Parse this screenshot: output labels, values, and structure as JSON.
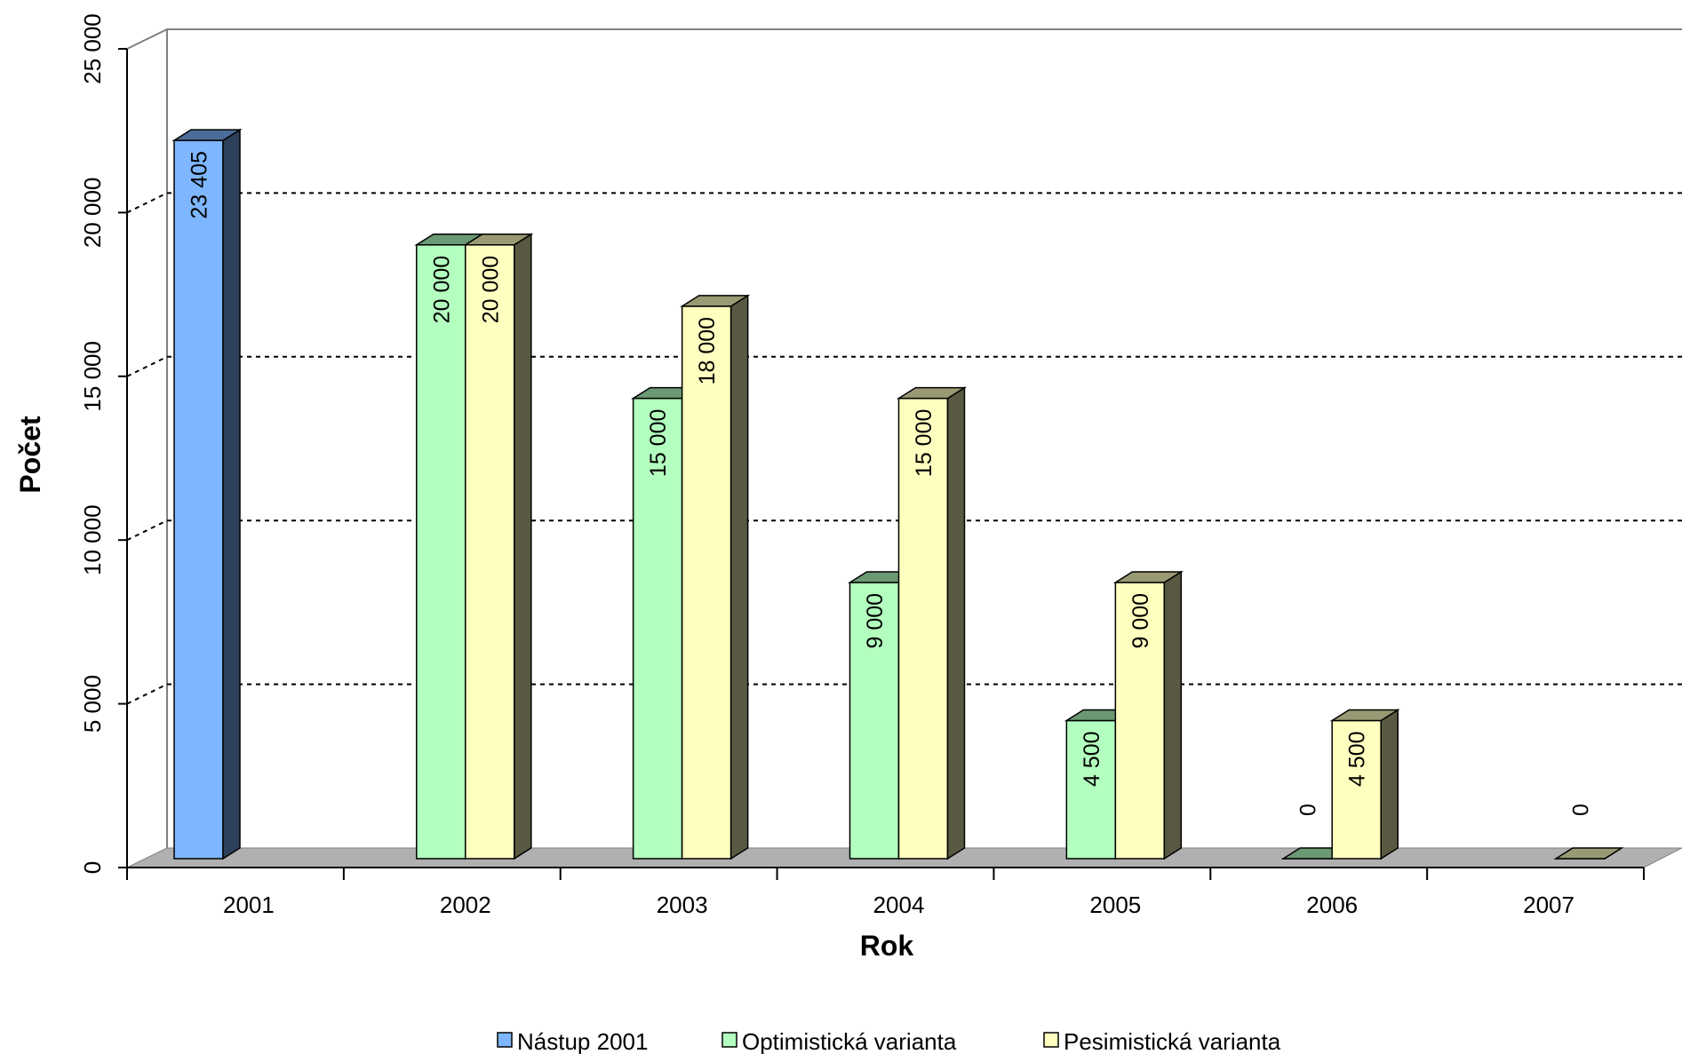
{
  "chart_data": {
    "type": "bar",
    "title": "",
    "xlabel": "Rok",
    "ylabel": "Počet",
    "ylim": [
      0,
      25000
    ],
    "yticks": [
      0,
      5000,
      10000,
      15000,
      20000,
      25000
    ],
    "ytick_labels": [
      "0",
      "5 000",
      "10 000",
      "15 000",
      "20 000",
      "25 000"
    ],
    "categories": [
      "2001",
      "2002",
      "2003",
      "2004",
      "2005",
      "2006",
      "2007"
    ],
    "series": [
      {
        "name": "Nástup 2001",
        "color": "#7EB6FF",
        "values": [
          23405,
          null,
          null,
          null,
          null,
          null,
          null
        ],
        "labels": [
          "23 405",
          null,
          null,
          null,
          null,
          null,
          null
        ]
      },
      {
        "name": "Optimistická varianta",
        "color": "#B3FFBF",
        "values": [
          null,
          20000,
          15000,
          9000,
          4500,
          0,
          null
        ],
        "labels": [
          null,
          "20 000",
          "15 000",
          "9 000",
          "4 500",
          "0",
          null
        ]
      },
      {
        "name": "Pesimistická varianta",
        "color": "#FFFFC0",
        "values": [
          null,
          20000,
          18000,
          15000,
          9000,
          4500,
          0
        ],
        "labels": [
          null,
          "20 000",
          "18 000",
          "15 000",
          "9 000",
          "4 500",
          "0"
        ]
      }
    ],
    "grid": true,
    "legend_position": "bottom",
    "style": "3d-clustered-column"
  }
}
